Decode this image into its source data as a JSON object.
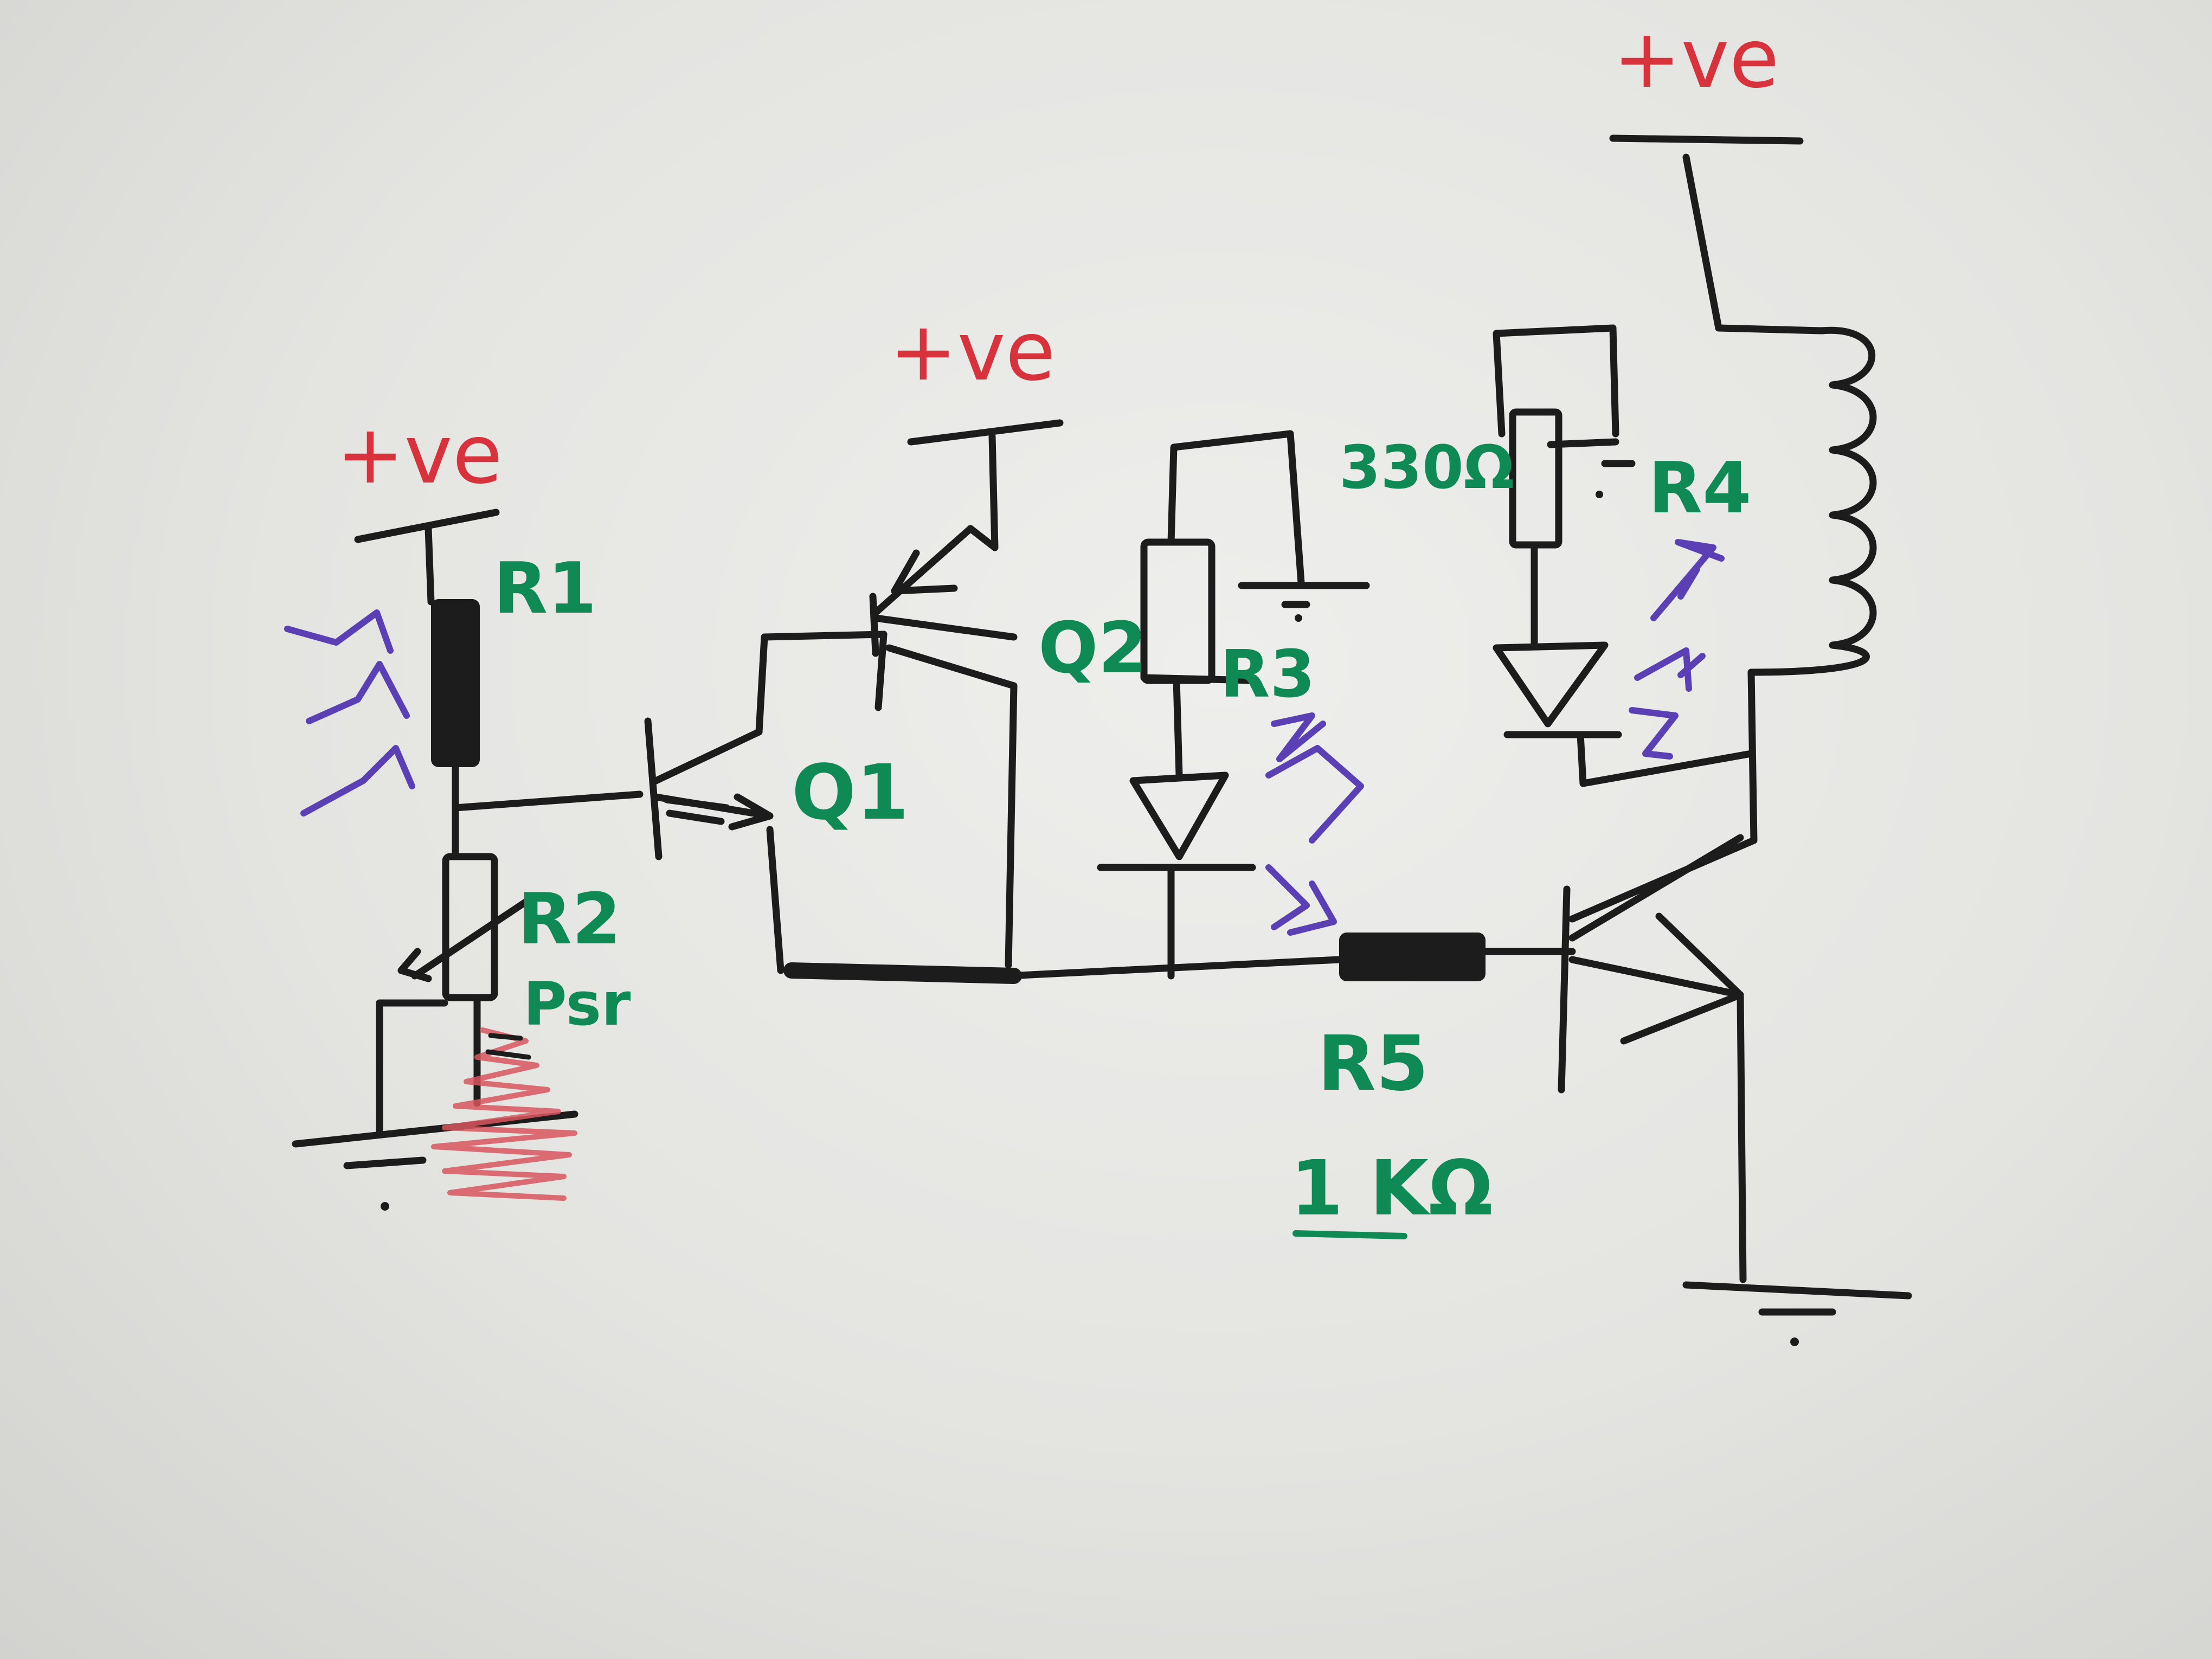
{
  "supply": {
    "ldr": "+ve",
    "q2": "+ve",
    "relay": "+ve"
  },
  "labels": {
    "r1": "R1",
    "r2": "R2",
    "q1": "Q1",
    "q2": "Q2",
    "r3": "R3",
    "r4": "R4",
    "r5": "R5",
    "r4_value": "330Ω",
    "r5_value": "1 KΩ",
    "preset": "Psr"
  },
  "colors": {
    "wire": "#1c1c1c",
    "component_label": "#0f8a55",
    "supply_label": "#d8323c",
    "light_arrows": "#5a3fb5"
  }
}
